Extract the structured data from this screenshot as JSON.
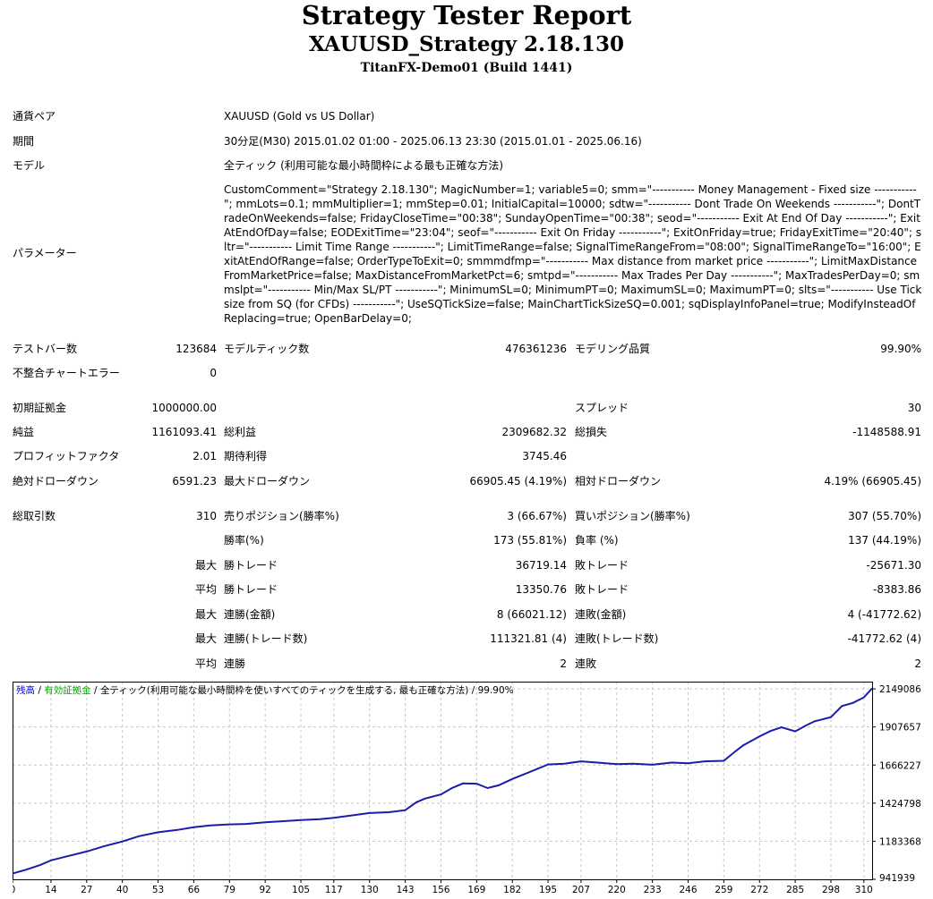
{
  "header": {
    "title": "Strategy Tester Report",
    "subtitle": "XAUUSD_Strategy 2.18.130",
    "server": "TitanFX-Demo01 (Build 1441)"
  },
  "info": {
    "symbol_label": "通貨ペア",
    "symbol_value": "XAUUSD (Gold vs US Dollar)",
    "period_label": "期間",
    "period_value": "30分足(M30) 2015.01.02 01:00 - 2025.06.13 23:30 (2015.01.01 - 2025.06.16)",
    "model_label": "モデル",
    "model_value": "全ティック (利用可能な最小時間枠による最も正確な方法)",
    "params_label": "パラメーター",
    "params_value": "CustomComment=\"Strategy 2.18.130\"; MagicNumber=1; variable5=0; smm=\"----------- Money Management - Fixed size -----------\"; mmLots=0.1; mmMultiplier=1; mmStep=0.01; InitialCapital=10000; sdtw=\"----------- Dont Trade On Weekends -----------\"; DontTradeOnWeekends=false; FridayCloseTime=\"00:38\"; SundayOpenTime=\"00:38\"; seod=\"----------- Exit At End Of Day -----------\"; ExitAtEndOfDay=false; EODExitTime=\"23:04\"; seof=\"----------- Exit On Friday -----------\"; ExitOnFriday=true; FridayExitTime=\"20:40\"; sltr=\"----------- Limit Time Range -----------\"; LimitTimeRange=false; SignalTimeRangeFrom=\"08:00\"; SignalTimeRangeTo=\"16:00\"; ExitAtEndOfRange=false; OrderTypeToExit=0; smmmdfmp=\"----------- Max distance from market price -----------\"; LimitMaxDistanceFromMarketPrice=false; MaxDistanceFromMarketPct=6; smtpd=\"----------- Max Trades Per Day -----------\"; MaxTradesPerDay=0; smmslpt=\"----------- Min/Max SL/PT -----------\"; MinimumSL=0; MinimumPT=0; MaximumSL=0; MaximumPT=0; slts=\"----------- Use Tick size from SQ (for CFDs) -----------\"; UseSQTickSize=false; MainChartTickSizeSQ=0.001; sqDisplayInfoPanel=true; ModifyInsteadOfReplacing=true; OpenBarDelay=0;"
  },
  "stats": {
    "bars_label": "テストバー数",
    "bars_value": "123684",
    "ticks_label": "モデルティック数",
    "ticks_value": "476361236",
    "quality_label": "モデリング品質",
    "quality_value": "99.90%",
    "mismatch_label": "不整合チャートエラー",
    "mismatch_value": "0",
    "deposit_label": "初期証拠金",
    "deposit_value": "1000000.00",
    "spread_label": "スプレッド",
    "spread_value": "30",
    "net_label": "純益",
    "net_value": "1161093.41",
    "gross_profit_label": "総利益",
    "gross_profit_value": "2309682.32",
    "gross_loss_label": "総損失",
    "gross_loss_value": "-1148588.91",
    "pf_label": "プロフィットファクタ",
    "pf_value": "2.01",
    "expected_label": "期待利得",
    "expected_value": "3745.46",
    "abs_dd_label": "絶対ドローダウン",
    "abs_dd_value": "6591.23",
    "max_dd_label": "最大ドローダウン",
    "max_dd_value": "66905.45 (4.19%)",
    "rel_dd_label": "相対ドローダウン",
    "rel_dd_value": "4.19% (66905.45)",
    "total_trades_label": "総取引数",
    "total_trades_value": "310",
    "short_label": "売りポジション(勝率%)",
    "short_value": "3 (66.67%)",
    "long_label": "買いポジション(勝率%)",
    "long_value": "307 (55.70%)",
    "win_rate_label": "勝率(%)",
    "win_rate_value": "173 (55.81%)",
    "loss_rate_label": "負率 (%)",
    "loss_rate_value": "137 (44.19%)",
    "largest_prefix": "最大",
    "largest_win_label": "勝トレード",
    "largest_win_value": "36719.14",
    "largest_loss_label": "敗トレード",
    "largest_loss_value": "-25671.30",
    "average_prefix": "平均",
    "avg_win_label": "勝トレード",
    "avg_win_value": "13350.76",
    "avg_loss_label": "敗トレード",
    "avg_loss_value": "-8383.86",
    "max_consec_prefix": "最大",
    "max_consec_wins_label": "連勝(金額)",
    "max_consec_wins_value": "8 (66021.12)",
    "max_consec_losses_label": "連敗(金額)",
    "max_consec_losses_value": "4 (-41772.62)",
    "max_consec_prefix2": "最大",
    "max_consec_profit_label": "連勝(トレード数)",
    "max_consec_profit_value": "111321.81 (4)",
    "max_consec_loss_label": "連敗(トレード数)",
    "max_consec_loss_value": "-41772.62 (4)",
    "avg_consec_prefix": "平均",
    "avg_consec_wins_label": "連勝",
    "avg_consec_wins_value": "2",
    "avg_consec_losses_label": "連敗",
    "avg_consec_losses_value": "2"
  },
  "chart_legend": {
    "balance": "残高",
    "sep1": " / ",
    "equity": "有効証拠金",
    "sep2": " / ",
    "model": "全ティック(利用可能な最小時間枠を使いすべてのティックを生成する, 最も正確な方法)",
    "sep3": " / ",
    "quality": "99.90%"
  },
  "colors": {
    "balance": "#0000ff",
    "equity": "#00aa00",
    "line": "#1c1ca8",
    "grid": "#c8c8c8"
  },
  "chart_data": {
    "type": "line",
    "title": "",
    "xlabel": "",
    "ylabel": "",
    "x_ticks": [
      0,
      14,
      27,
      40,
      53,
      66,
      79,
      92,
      105,
      117,
      130,
      143,
      156,
      169,
      182,
      195,
      207,
      220,
      233,
      246,
      259,
      272,
      285,
      298,
      310
    ],
    "y_ticks": [
      941939,
      1183368,
      1424798,
      1666227,
      1907657,
      2149086
    ],
    "xlim": [
      0,
      313
    ],
    "ylim": [
      941939,
      2195000
    ],
    "grid": true,
    "series": [
      {
        "name": "残高",
        "x": [
          0,
          5,
          10,
          14,
          20,
          27,
          33,
          40,
          46,
          53,
          60,
          66,
          72,
          79,
          85,
          92,
          98,
          105,
          112,
          117,
          124,
          130,
          137,
          143,
          147,
          150,
          156,
          160,
          164,
          169,
          173,
          177,
          182,
          188,
          195,
          201,
          207,
          213,
          220,
          226,
          233,
          240,
          246,
          252,
          259,
          263,
          266,
          272,
          276,
          280,
          285,
          289,
          292,
          298,
          302,
          306,
          310,
          313
        ],
        "y": [
          978000,
          1003000,
          1032000,
          1062000,
          1088000,
          1118000,
          1150000,
          1182000,
          1215000,
          1240000,
          1255000,
          1272000,
          1283000,
          1290000,
          1293000,
          1303000,
          1310000,
          1318000,
          1323000,
          1332000,
          1348000,
          1362000,
          1367000,
          1380000,
          1430000,
          1453000,
          1480000,
          1520000,
          1550000,
          1548000,
          1520000,
          1538000,
          1578000,
          1620000,
          1670000,
          1675000,
          1690000,
          1682000,
          1672000,
          1675000,
          1668000,
          1682000,
          1678000,
          1690000,
          1693000,
          1750000,
          1790000,
          1848000,
          1882000,
          1905000,
          1880000,
          1918000,
          1943000,
          1970000,
          2040000,
          2060000,
          2095000,
          2152000
        ]
      }
    ]
  }
}
